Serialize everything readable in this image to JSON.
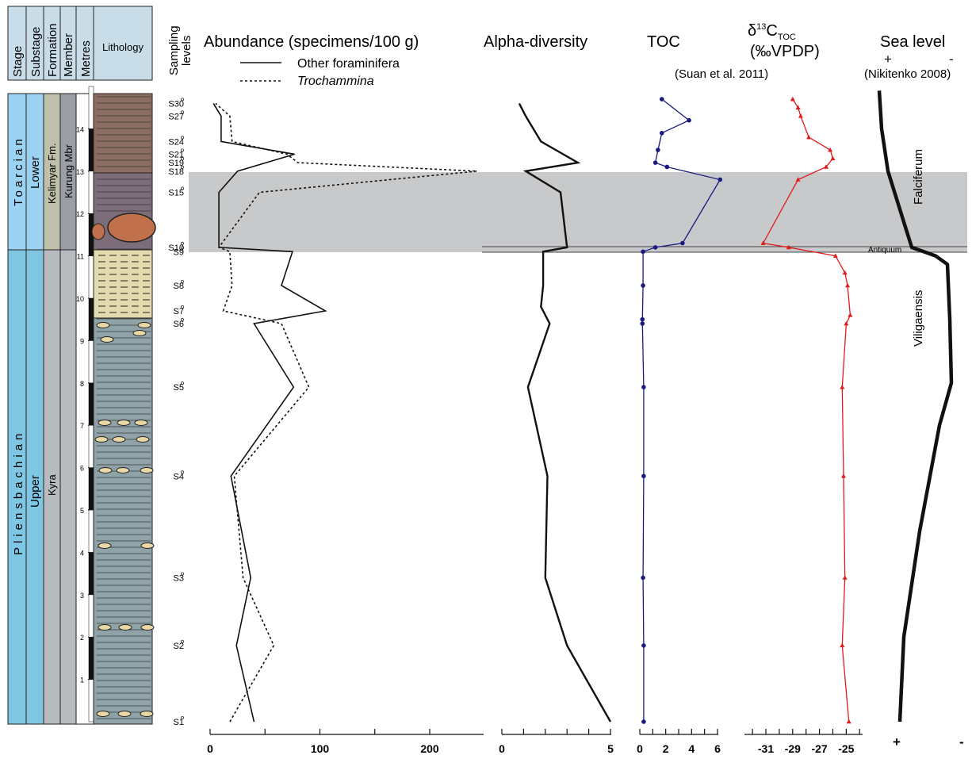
{
  "strat": {
    "col_headers": [
      "Stage",
      "Substage",
      "Formation",
      "Member",
      "Metres",
      "Lithology"
    ],
    "stage": [
      "Toarcian",
      "Pliensbachian"
    ],
    "substage": [
      "Lower",
      "Upper"
    ],
    "formation": [
      "Kelimyar Fm.",
      "Kyra"
    ],
    "member": [
      "Kurung Mbr"
    ],
    "metres_ticks": [
      1,
      2,
      3,
      4,
      5,
      6,
      7,
      8,
      9,
      10,
      11,
      12,
      13,
      14
    ],
    "sampling_header": [
      "Sampling",
      "levels"
    ],
    "samples": [
      {
        "label": "S1",
        "m": 0.0
      },
      {
        "label": "S2",
        "m": 1.8
      },
      {
        "label": "S3",
        "m": 3.4
      },
      {
        "label": "S4",
        "m": 5.8
      },
      {
        "label": "S5",
        "m": 7.9
      },
      {
        "label": "S6",
        "m": 9.4
      },
      {
        "label": "S7",
        "m": 9.7
      },
      {
        "label": "S8",
        "m": 10.3
      },
      {
        "label": "S9",
        "m": 11.1
      },
      {
        "label": "S10",
        "m": 11.2
      },
      {
        "label": "S15",
        "m": 12.5
      },
      {
        "label": "S18",
        "m": 13.0
      },
      {
        "label": "S19",
        "m": 13.2
      },
      {
        "label": "S21",
        "m": 13.4
      },
      {
        "label": "S24",
        "m": 13.7
      },
      {
        "label": "S27",
        "m": 14.3
      },
      {
        "label": "S30",
        "m": 14.6
      }
    ]
  },
  "headers": {
    "abundance": "Abundance (specimens/100 g)",
    "legend_other": "Other foraminifera",
    "legend_troch": "Trochammina",
    "alpha": "Alpha-diversity",
    "toc": "TOC",
    "d13c_l1_main": "δ",
    "d13c_l1_sup": "13",
    "d13c_l1_c": "C",
    "d13c_l1_sub": "TOC",
    "d13c_l2": "(‰VPDP)",
    "suan": "(Suan et al. 2011)",
    "sea": "Sea level",
    "sea_plus": "+",
    "sea_minus": "-",
    "nikitenko": "(Nikitenko 2008)"
  },
  "zones": {
    "falciferum": "Falciferum",
    "antiquum": "Antiquum",
    "viligaensis": "Viligaensis"
  },
  "chart_data": [
    {
      "type": "line",
      "title": "Abundance (specimens/100 g)",
      "y_axis": "metres",
      "ylim": [
        0,
        14.9
      ],
      "xlim": [
        0,
        250
      ],
      "x_ticks": [
        0,
        100,
        200
      ],
      "series": [
        {
          "name": "Other foraminifera",
          "style": "solid",
          "points": [
            [
              40,
              0
            ],
            [
              24,
              1.8
            ],
            [
              37,
              3.4
            ],
            [
              19,
              5.8
            ],
            [
              76,
              7.9
            ],
            [
              40,
              9.4
            ],
            [
              105,
              9.7
            ],
            [
              65,
              10.3
            ],
            [
              75,
              11.1
            ],
            [
              8,
              11.2
            ],
            [
              8,
              12.5
            ],
            [
              25,
              13.0
            ],
            [
              77,
              13.4
            ],
            [
              10,
              13.7
            ],
            [
              10,
              14.3
            ],
            [
              3,
              14.6
            ]
          ]
        },
        {
          "name": "Trochammina",
          "style": "dotted",
          "points": [
            [
              18,
              0
            ],
            [
              58,
              1.8
            ],
            [
              30,
              3.4
            ],
            [
              22,
              5.8
            ],
            [
              90,
              7.9
            ],
            [
              65,
              9.4
            ],
            [
              12,
              9.7
            ],
            [
              20,
              10.3
            ],
            [
              18,
              11.1
            ],
            [
              8,
              11.2
            ],
            [
              45,
              12.5
            ],
            [
              243,
              13.0
            ],
            [
              80,
              13.2
            ],
            [
              70,
              13.4
            ],
            [
              20,
              13.7
            ],
            [
              18,
              14.3
            ],
            [
              5,
              14.6
            ]
          ]
        }
      ]
    },
    {
      "type": "line",
      "title": "Alpha-diversity",
      "y_axis": "metres",
      "xlim": [
        0,
        5
      ],
      "x_ticks": [
        0,
        5
      ],
      "series": [
        {
          "name": "",
          "points": [
            [
              5,
              0
            ],
            [
              3,
              1.8
            ],
            [
              2,
              3.4
            ],
            [
              2.1,
              5.8
            ],
            [
              1.2,
              7.9
            ],
            [
              2.2,
              9.4
            ],
            [
              1.8,
              9.8
            ],
            [
              1.9,
              10.3
            ],
            [
              1.9,
              11.1
            ],
            [
              3,
              11.2
            ],
            [
              2.7,
              12.5
            ],
            [
              1.1,
              13.0
            ],
            [
              3.5,
              13.2
            ],
            [
              1.8,
              13.7
            ],
            [
              1.1,
              14.3
            ],
            [
              0.8,
              14.6
            ]
          ]
        }
      ]
    },
    {
      "type": "line",
      "title": "TOC",
      "y_axis": "metres",
      "xlim": [
        0,
        6
      ],
      "x_ticks": [
        0,
        2,
        4,
        6
      ],
      "color": "#1a1a80",
      "series": [
        {
          "name": "TOC",
          "points": [
            [
              0.3,
              0
            ],
            [
              0.3,
              1.8
            ],
            [
              0.25,
              3.4
            ],
            [
              0.3,
              5.8
            ],
            [
              0.3,
              7.9
            ],
            [
              0.2,
              9.4
            ],
            [
              0.2,
              9.5
            ],
            [
              0.25,
              10.3
            ],
            [
              0.25,
              11.1
            ],
            [
              1.2,
              11.2
            ],
            [
              3.3,
              11.3
            ],
            [
              6.2,
              12.8
            ],
            [
              2.1,
              13.1
            ],
            [
              1.2,
              13.2
            ],
            [
              1.4,
              13.5
            ],
            [
              1.7,
              13.9
            ],
            [
              3.8,
              14.2
            ],
            [
              1.7,
              14.7
            ]
          ]
        }
      ]
    },
    {
      "type": "line",
      "title": "δ13C TOC (‰VPDP)",
      "y_axis": "metres",
      "xlim": [
        -32.6,
        -23.6
      ],
      "x_ticks": [
        -31,
        -29,
        -27,
        -25
      ],
      "color": "#e01b1b",
      "series": [
        {
          "name": "δ13C",
          "points": [
            [
              -24.8,
              0
            ],
            [
              -25.3,
              1.8
            ],
            [
              -25.1,
              3.4
            ],
            [
              -25.2,
              5.8
            ],
            [
              -25.3,
              7.9
            ],
            [
              -25.0,
              9.4
            ],
            [
              -24.7,
              9.6
            ],
            [
              -24.9,
              10.3
            ],
            [
              -25.1,
              10.6
            ],
            [
              -25.8,
              11.0
            ],
            [
              -29.3,
              11.2
            ],
            [
              -31.2,
              11.3
            ],
            [
              -28.6,
              12.8
            ],
            [
              -26.5,
              13.1
            ],
            [
              -26.0,
              13.3
            ],
            [
              -26.2,
              13.5
            ],
            [
              -27.8,
              13.8
            ],
            [
              -28.4,
              14.3
            ],
            [
              -28.6,
              14.5
            ],
            [
              -29.0,
              14.7
            ]
          ]
        }
      ]
    },
    {
      "type": "line",
      "title": "Sea level",
      "y_axis": "metres",
      "xlim": [
        "+",
        "-"
      ],
      "series": [
        {
          "name": "Sea level",
          "points": [
            [
              0.3,
              0
            ],
            [
              0.35,
              2
            ],
            [
              0.55,
              4.5
            ],
            [
              0.8,
              7
            ],
            [
              0.95,
              8
            ],
            [
              0.93,
              9.5
            ],
            [
              0.9,
              10.8
            ],
            [
              0.75,
              11.0
            ],
            [
              0.45,
              11.2
            ],
            [
              0.35,
              11.8
            ],
            [
              0.15,
              13
            ],
            [
              0.07,
              14
            ],
            [
              0.04,
              14.9
            ]
          ]
        }
      ]
    }
  ]
}
